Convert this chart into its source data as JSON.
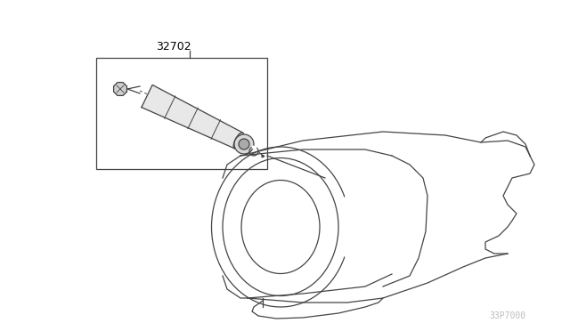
{
  "background_color": "#ffffff",
  "line_color": "#444444",
  "label_32702": "32702",
  "watermark": "33P7000",
  "title_fontsize": 9,
  "watermark_fontsize": 7,
  "lw": 0.9
}
